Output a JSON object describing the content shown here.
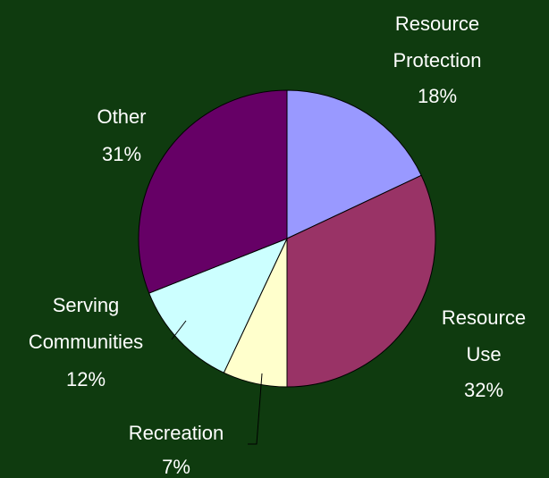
{
  "chart_data": {
    "type": "pie",
    "title": "",
    "legend": "none",
    "labels": [
      "Resource Protection",
      "Resource Use",
      "Recreation",
      "Serving Communities",
      "Other"
    ],
    "values": [
      18,
      32,
      7,
      12,
      31
    ],
    "value_labels": [
      "18%",
      "32%",
      "7%",
      "12%",
      "31%"
    ],
    "colors": [
      "#9999ff",
      "#993366",
      "#ffffcc",
      "#ccffff",
      "#660066"
    ],
    "start_angle_deg_clockwise_from_top": 0,
    "direction": "clockwise"
  },
  "labels": {
    "resource_protection": {
      "line1": "Resource",
      "line2": "Protection",
      "pct": "18%"
    },
    "resource_use": {
      "line1": "Resource",
      "line2": "Use",
      "pct": "32%"
    },
    "recreation": {
      "line1": "Recreation",
      "pct": "7%"
    },
    "serving_communities": {
      "line1": "Serving",
      "line2": "Communities",
      "pct": "12%"
    },
    "other": {
      "line1": "Other",
      "pct": "31%"
    }
  },
  "colors": {
    "background": "#0f3b0f",
    "label_text": "#ffffff"
  }
}
